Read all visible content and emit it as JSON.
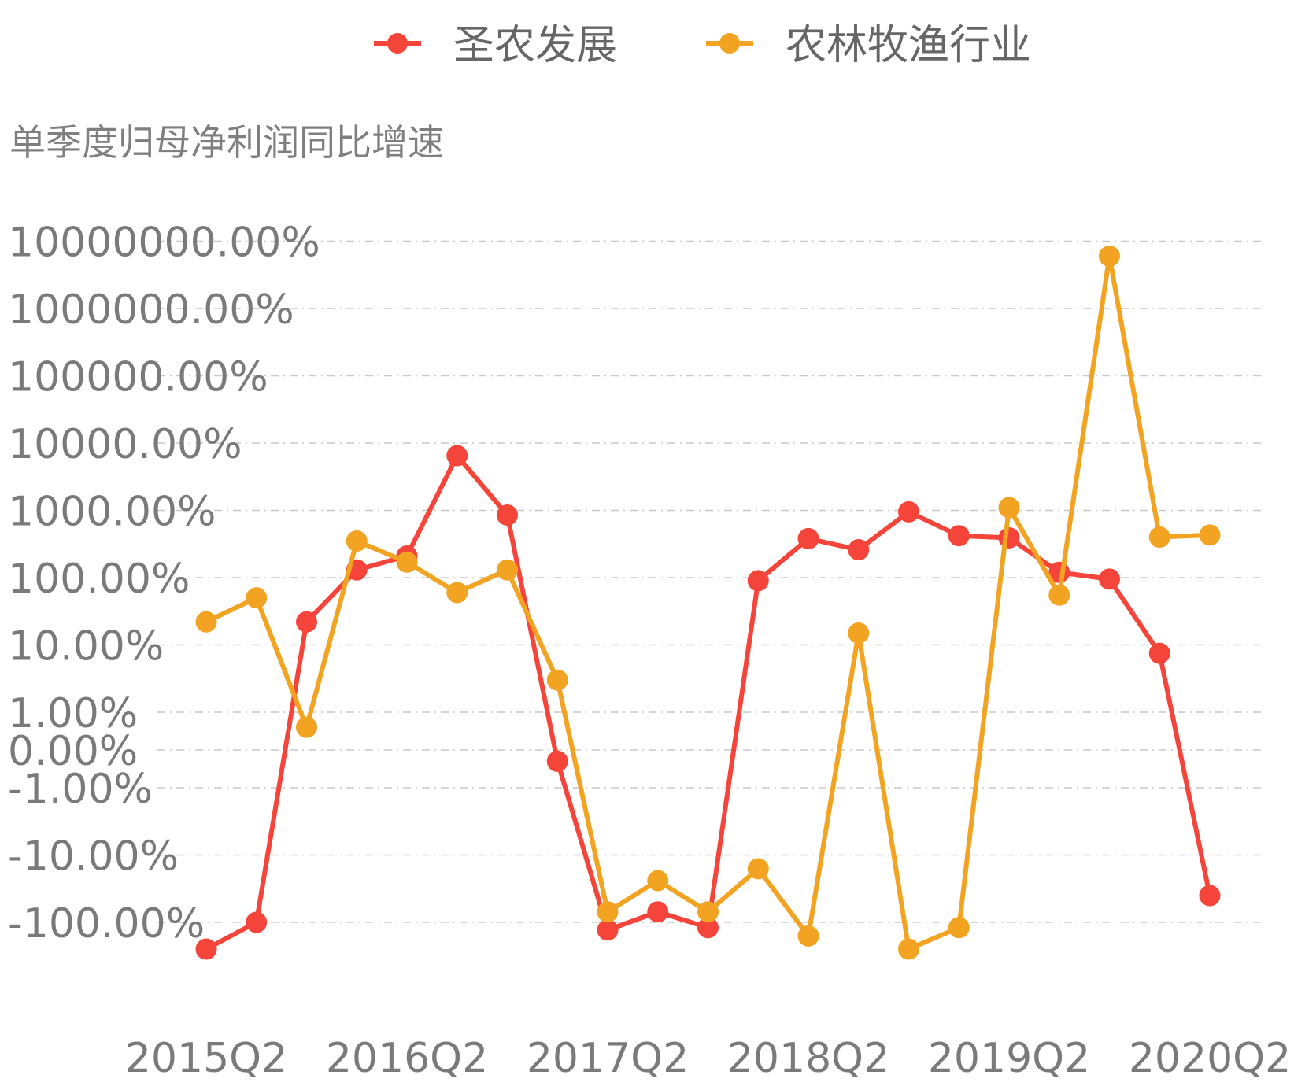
{
  "chart_data": {
    "type": "line",
    "title": "",
    "ylabel": "单季度归母净利润同比增速",
    "xlabel": "",
    "y_scale": "symlog",
    "legend_position": "top-center",
    "grid": true,
    "categories": [
      "2015Q2",
      "2015Q3",
      "2015Q4",
      "2016Q1",
      "2016Q2",
      "2016Q3",
      "2016Q4",
      "2017Q1",
      "2017Q2",
      "2017Q3",
      "2017Q4",
      "2018Q1",
      "2018Q2",
      "2018Q3",
      "2018Q4",
      "2019Q1",
      "2019Q2",
      "2019Q3",
      "2019Q4",
      "2020Q1",
      "2020Q2"
    ],
    "x_tick_labels": [
      "2015Q2",
      "2016Q2",
      "2017Q2",
      "2018Q2",
      "2019Q2",
      "2020Q2"
    ],
    "y_tick_labels": [
      "10000000.00%",
      "1000000.00%",
      "100000.00%",
      "10000.00%",
      "1000.00%",
      "100.00%",
      "10.00%",
      "1.00%",
      "0.00%",
      "-1.00%",
      "-10.00%",
      "-100.00%"
    ],
    "y_tick_values": [
      10000000,
      1000000,
      100000,
      10000,
      1000,
      100,
      10,
      1,
      0,
      -1,
      -10,
      -100
    ],
    "series": [
      {
        "name": "圣农发展",
        "color": "#f5443a",
        "values": [
          -250,
          -100,
          22,
          130,
          210,
          6500,
          850,
          -0.3,
          -130,
          -70,
          -120,
          90,
          380,
          260,
          950,
          420,
          390,
          120,
          95,
          7.5,
          -40
        ]
      },
      {
        "name": "农林牧渔行业",
        "color": "#f2a321",
        "values": [
          22,
          50,
          0.6,
          350,
          170,
          60,
          130,
          3,
          -70,
          -24,
          -70,
          -16,
          -160,
          15,
          -250,
          -120,
          1100,
          55,
          6000000,
          400,
          430
        ]
      }
    ]
  }
}
